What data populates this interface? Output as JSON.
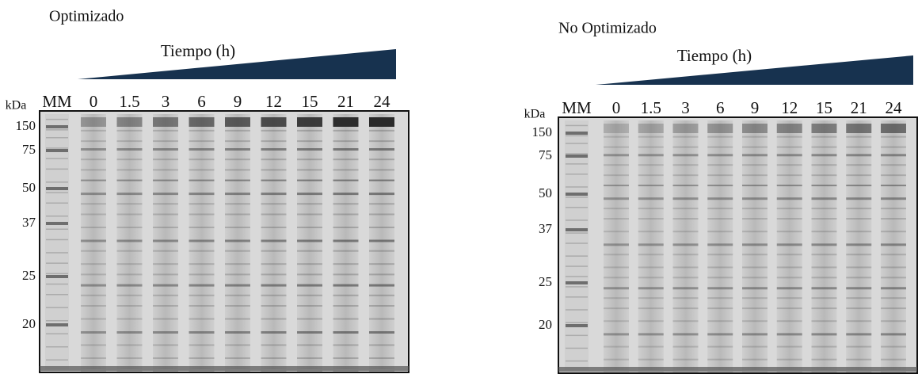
{
  "panels": [
    {
      "title": "Optimizado",
      "axis_label": "Tiempo (h)",
      "unit_label": "kDa",
      "marker_label": "MM",
      "lanes": [
        "0",
        "1.5",
        "3",
        "6",
        "9",
        "12",
        "15",
        "21",
        "24"
      ],
      "markers": [
        "150",
        "75",
        "50",
        "37",
        "25",
        "20"
      ]
    },
    {
      "title": "No Optimizado",
      "axis_label": "Tiempo (h)",
      "unit_label": "kDa",
      "marker_label": "MM",
      "lanes": [
        "0",
        "1.5",
        "3",
        "6",
        "9",
        "12",
        "15",
        "21",
        "24"
      ],
      "markers": [
        "150",
        "75",
        "50",
        "37",
        "25",
        "20"
      ]
    }
  ]
}
